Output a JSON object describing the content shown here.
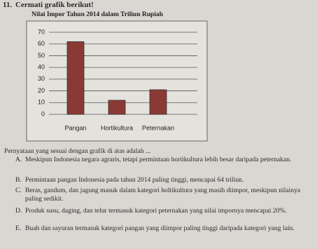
{
  "question": {
    "number": "11.",
    "prompt": "Cermati grafik berikut!"
  },
  "chart_data": {
    "type": "bar",
    "title": "Nilai Impor Tahun 2014 dalam Triliun Rupiah",
    "categories": [
      "Pangan",
      "Hortikultura",
      "Peternakan"
    ],
    "values": [
      62,
      12,
      21
    ],
    "color": "#8a3a34",
    "ylim": [
      0,
      70
    ],
    "yticks": [
      0,
      10,
      20,
      30,
      40,
      50,
      60,
      70
    ],
    "grid": true
  },
  "stem": "Pernyataan yang sesuai dengan grafik di atas adalah ...",
  "options": [
    {
      "letter": "A.",
      "text": "Meskipun Indonesia negara agraris, tetapi permintaan hortikultura lebih besar daripada peternakan."
    },
    {
      "letter": "B.",
      "text": "Permintaan pangan Indonesia pada tahun 2014 paling tinggi, mencapai 64 triliun."
    },
    {
      "letter": "C.",
      "text": "Beras, gandum, dan jagung masuk dalam kategori holtikultura yang masih diimpor, meskipun nilainya paling sedikit."
    },
    {
      "letter": "D.",
      "text": "Produk susu, daging, dan telur termasuk kategori peternakan yang nilai impornya mencapai 20%."
    },
    {
      "letter": "E.",
      "text": "Buah dan sayuran termasuk kategori pangan yang diimpor paling tinggi daripada kategori yang lain."
    }
  ]
}
